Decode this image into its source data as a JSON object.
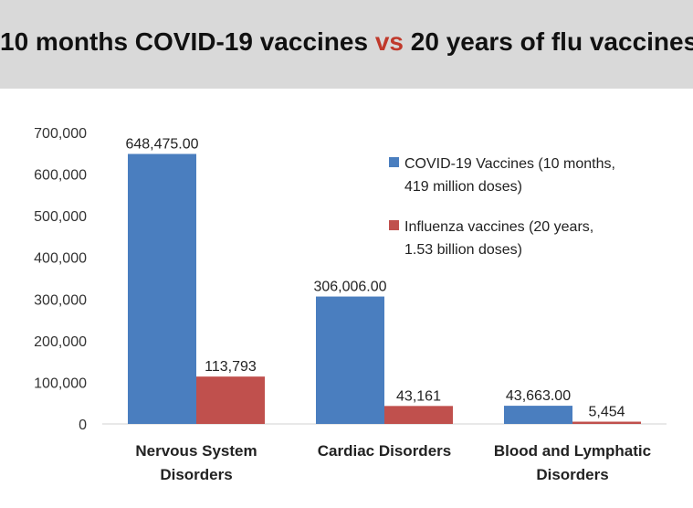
{
  "title": {
    "part1": "10 months COVID-19 vaccines",
    "vs": "vs",
    "part2": "20 years of flu vaccines"
  },
  "colors": {
    "covid": "#4a7ebf",
    "flu": "#c0504d",
    "vs": "#c0392b"
  },
  "chart_data": {
    "type": "bar",
    "title": "10 months COVID-19 vaccines vs 20 years of flu vaccines",
    "categories": [
      [
        "Nervous System",
        "Disorders"
      ],
      [
        "Cardiac Disorders"
      ],
      [
        "Blood and Lymphatic",
        "Disorders"
      ]
    ],
    "series": [
      {
        "name": [
          "COVID-19 Vaccines (10 months,",
          "419 million doses)"
        ],
        "values": [
          648475,
          306006,
          43663
        ],
        "labels": [
          "648,475.00",
          "306,006.00",
          "43,663.00"
        ]
      },
      {
        "name": [
          "Influenza vaccines (20 years,",
          "1.53 billion doses)"
        ],
        "values": [
          113793,
          43161,
          5454
        ],
        "labels": [
          "113,793",
          "43,161",
          "5,454"
        ]
      }
    ],
    "ylim": [
      0,
      700000
    ],
    "yticks": [
      0,
      100000,
      200000,
      300000,
      400000,
      500000,
      600000,
      700000
    ],
    "ytick_labels": [
      "0",
      "100,000",
      "200,000",
      "300,000",
      "400,000",
      "500,000",
      "600,000",
      "700,000"
    ],
    "xlabel": "",
    "ylabel": "",
    "legend": "top-right",
    "grid": false
  }
}
